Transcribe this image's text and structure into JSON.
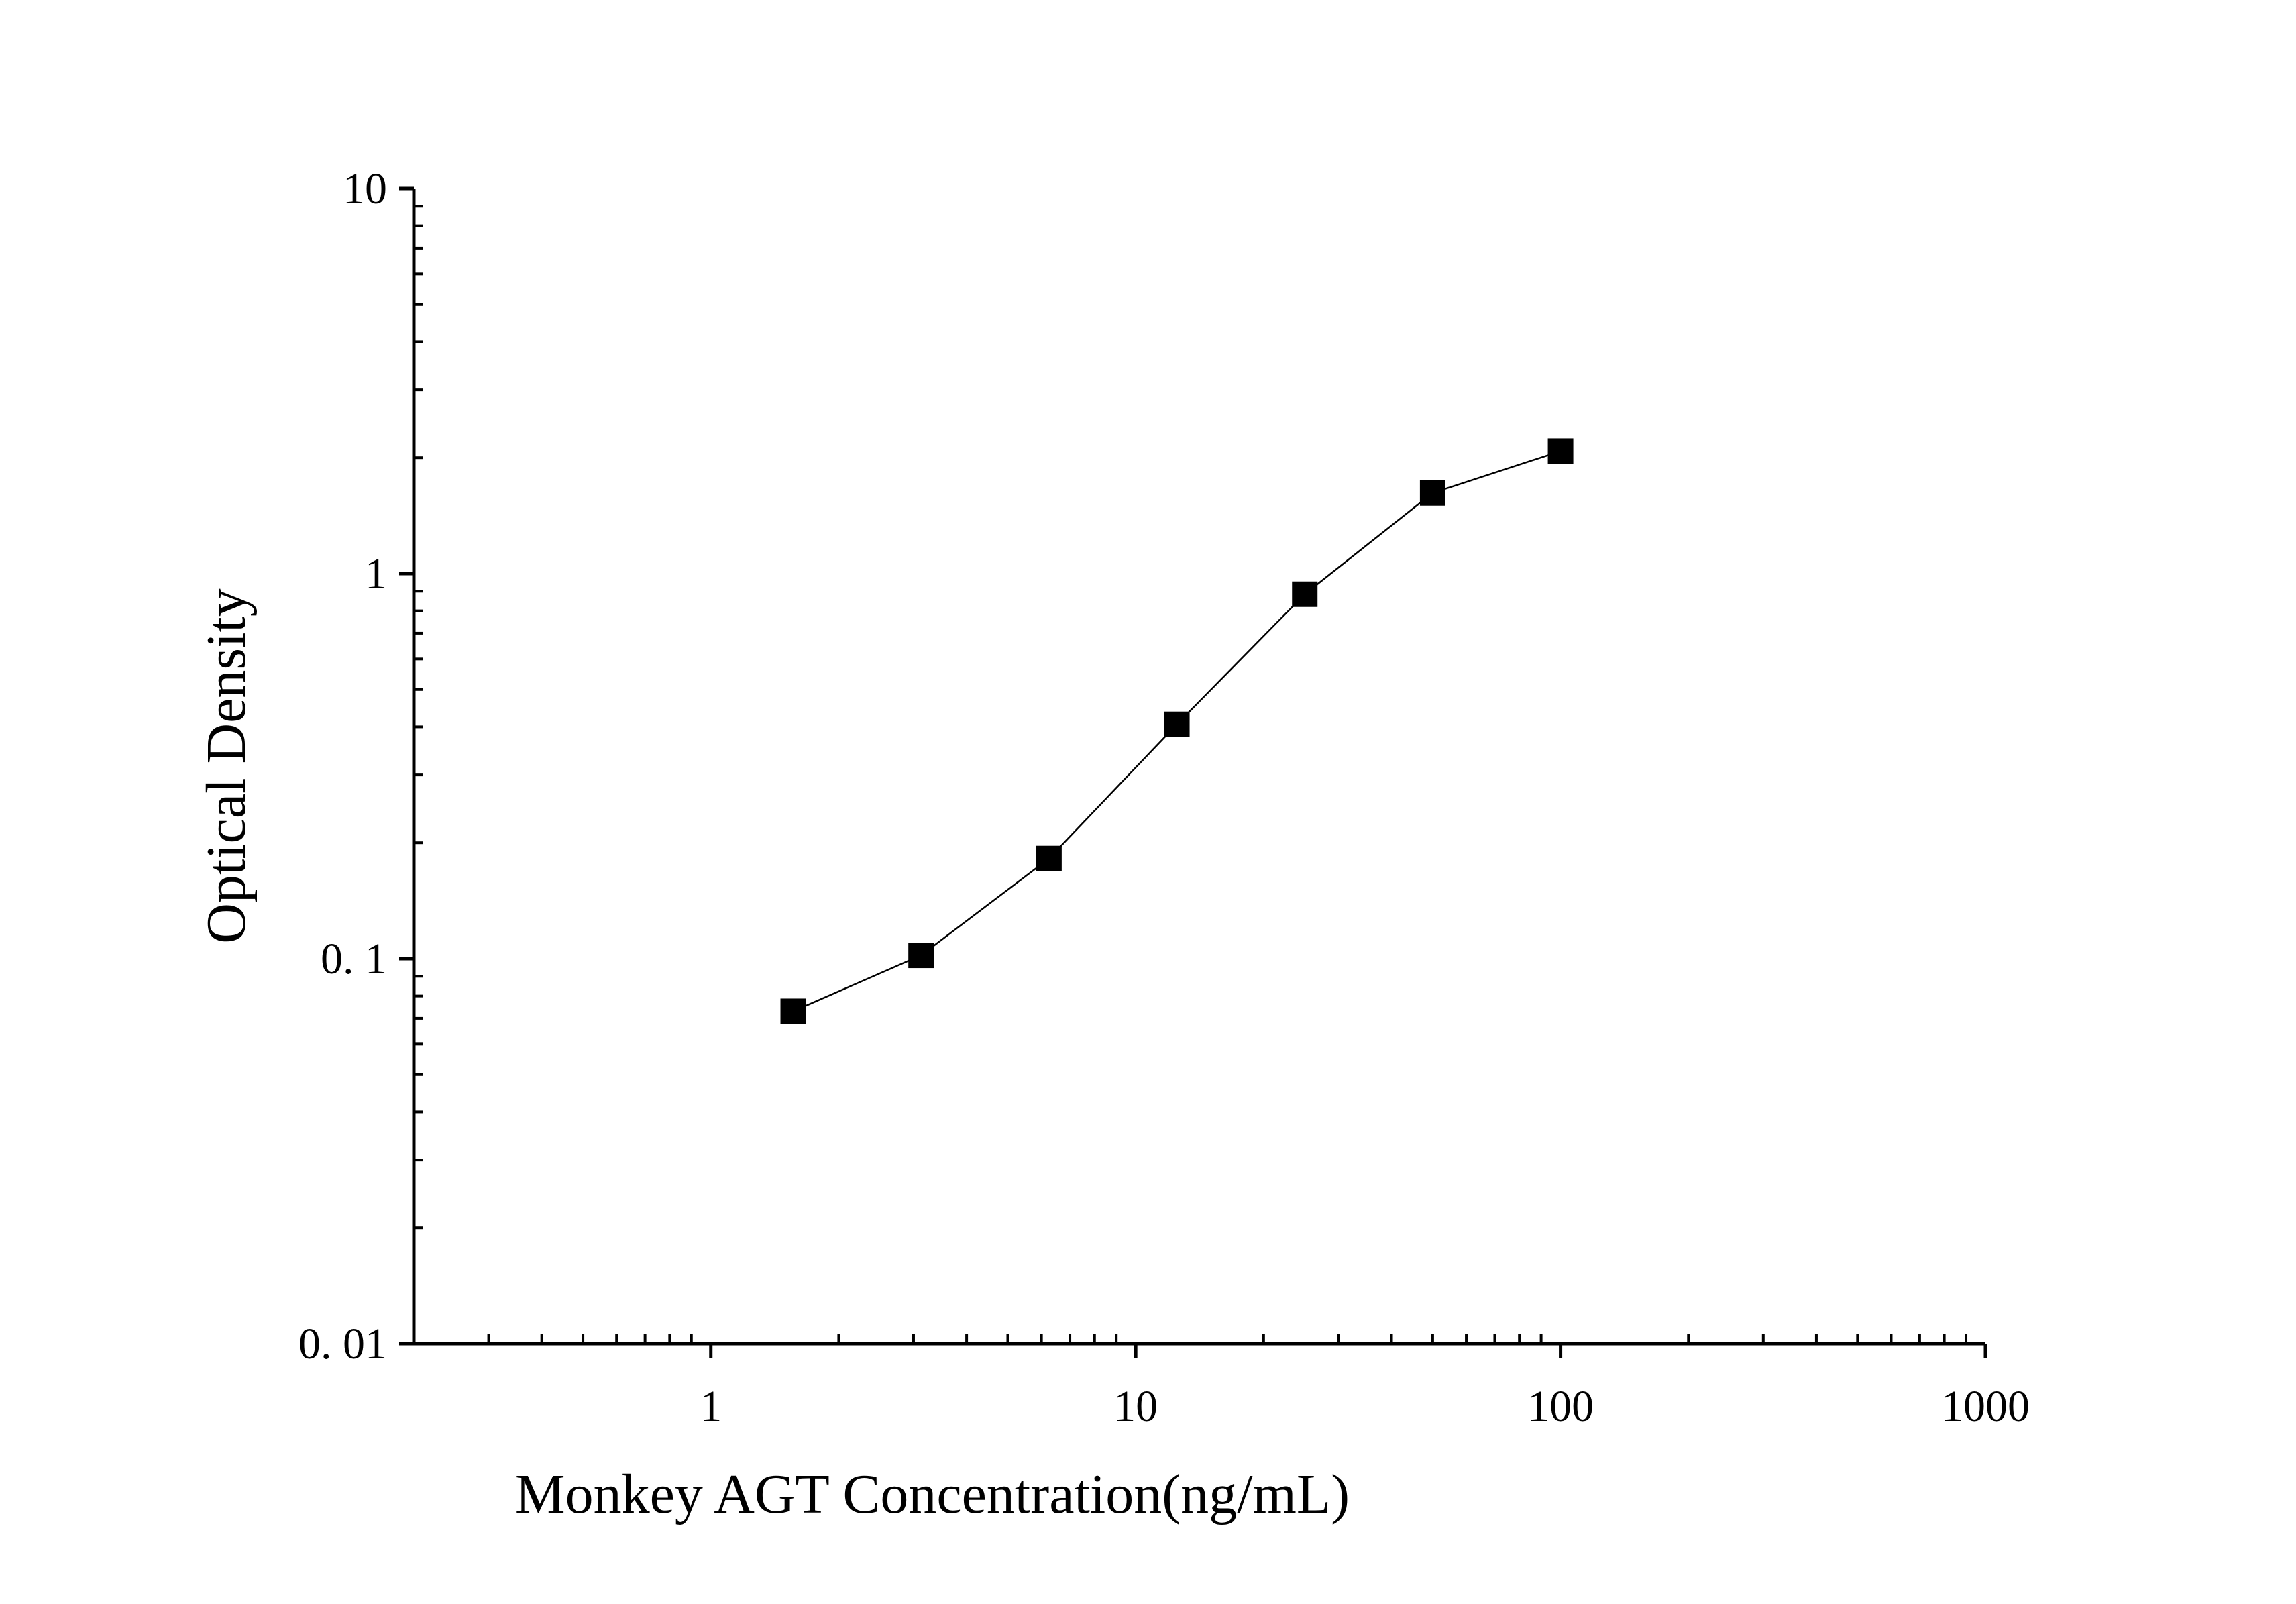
{
  "chart_data": {
    "type": "line",
    "title": "",
    "xlabel": "Monkey AGT Concentration(ng/mL)",
    "ylabel": "Optical Density",
    "x_scale": "log",
    "y_scale": "log",
    "xlim": [
      0.2,
      1000
    ],
    "ylim": [
      0.01,
      10
    ],
    "x_ticks": [
      1,
      10,
      100,
      1000
    ],
    "x_tick_labels": [
      "1",
      "10",
      "100",
      "1000"
    ],
    "y_ticks": [
      0.01,
      0.1,
      1,
      10
    ],
    "y_tick_labels": [
      "0. 01",
      "0. 1",
      "1",
      "10"
    ],
    "grid": false,
    "marker": "square",
    "color": "#000000",
    "series": [
      {
        "x": [
          1.5625,
          3.125,
          6.25,
          12.5,
          25,
          50,
          100
        ],
        "y": [
          0.073,
          0.102,
          0.182,
          0.406,
          0.884,
          1.62,
          2.08
        ]
      }
    ]
  }
}
